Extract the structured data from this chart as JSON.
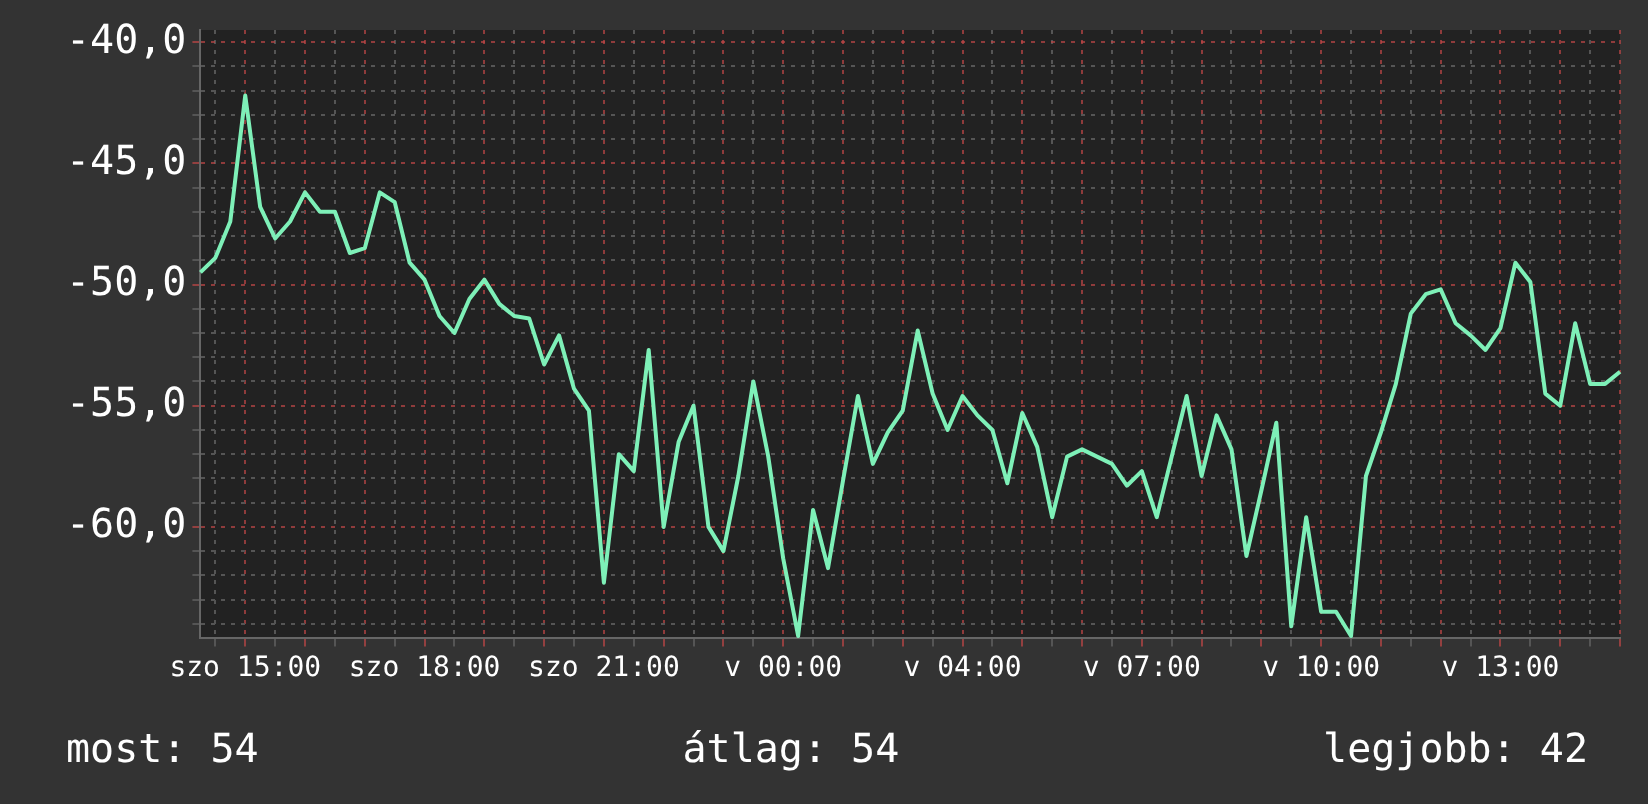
{
  "chart_data": {
    "type": "line",
    "categories": [
      null,
      null,
      null,
      "szo 15:00",
      null,
      null,
      null,
      null,
      null,
      null,
      null,
      null,
      null,
      null,
      null,
      "szo 18:00",
      null,
      null,
      null,
      null,
      null,
      null,
      null,
      null,
      null,
      null,
      null,
      "szo 21:00",
      null,
      null,
      null,
      null,
      null,
      null,
      null,
      null,
      null,
      null,
      null,
      "v 00:00",
      null,
      null,
      null,
      null,
      null,
      null,
      null,
      null,
      null,
      null,
      null,
      "v 04:00",
      null,
      null,
      null,
      null,
      null,
      null,
      null,
      null,
      null,
      null,
      null,
      "v 07:00",
      null,
      null,
      null,
      null,
      null,
      null,
      null,
      null,
      null,
      null,
      null,
      "v 10:00",
      null,
      null,
      null,
      null,
      null,
      null,
      null,
      null,
      null,
      null,
      null,
      "v 13:00",
      null,
      null,
      null,
      null,
      null,
      null,
      null,
      null
    ],
    "series": [
      {
        "color": "#7ef0b8",
        "values": [
          -49.5,
          -48.9,
          -47.4,
          -42.2,
          -46.8,
          -48.1,
          -47.4,
          -46.2,
          -47.0,
          -47.0,
          -48.7,
          -48.5,
          -46.2,
          -46.6,
          -49.1,
          -49.8,
          -51.3,
          -52.0,
          -50.6,
          -49.8,
          -50.8,
          -51.3,
          -51.4,
          -53.3,
          -52.1,
          -54.3,
          -55.2,
          -62.3,
          -57.0,
          -57.7,
          -52.7,
          -60.0,
          -56.5,
          -55.0,
          -60.0,
          -61.0,
          -57.9,
          -54.0,
          -57.1,
          -61.3,
          -64.5,
          -59.3,
          -61.7,
          -58.1,
          -54.6,
          -57.4,
          -56.1,
          -55.2,
          -51.9,
          -54.5,
          -56.0,
          -54.6,
          -55.4,
          -56.0,
          -58.2,
          -55.3,
          -56.7,
          -59.6,
          -57.1,
          -56.8,
          -57.1,
          -57.4,
          -58.3,
          -57.7,
          -59.6,
          -57.1,
          -54.6,
          -57.9,
          -55.4,
          -56.8,
          -61.2,
          -58.5,
          -55.7,
          -64.1,
          -59.6,
          -63.5,
          -63.5,
          -64.5,
          -57.9,
          -56.1,
          -54.1,
          -51.2,
          -50.4,
          -50.2,
          -51.6,
          -52.1,
          -52.7,
          -51.8,
          -49.1,
          -49.9,
          -54.5,
          -55.0,
          -51.6,
          -54.1,
          -54.1,
          -53.6
        ]
      }
    ],
    "ylim": [
      -64.6,
      -39.5
    ],
    "yticks": [
      {
        "value": -40,
        "label": "-40,0"
      },
      {
        "value": -41,
        "label": null
      },
      {
        "value": -42,
        "label": null
      },
      {
        "value": -43,
        "label": null
      },
      {
        "value": -44,
        "label": null
      },
      {
        "value": -45,
        "label": "-45,0"
      },
      {
        "value": -46,
        "label": null
      },
      {
        "value": -47,
        "label": null
      },
      {
        "value": -48,
        "label": null
      },
      {
        "value": -49,
        "label": null
      },
      {
        "value": -50,
        "label": "-50,0"
      },
      {
        "value": -51,
        "label": null
      },
      {
        "value": -52,
        "label": null
      },
      {
        "value": -53,
        "label": null
      },
      {
        "value": -54,
        "label": null
      },
      {
        "value": -55,
        "label": "-55,0"
      },
      {
        "value": -56,
        "label": null
      },
      {
        "value": -57,
        "label": null
      },
      {
        "value": -58,
        "label": null
      },
      {
        "value": -59,
        "label": null
      },
      {
        "value": -60,
        "label": "-60,0"
      },
      {
        "value": -61,
        "label": null
      },
      {
        "value": -62,
        "label": null
      },
      {
        "value": -63,
        "label": null
      },
      {
        "value": -64,
        "label": null
      }
    ],
    "grid": true,
    "legend": false,
    "marker": "none",
    "line_style": "solid",
    "annotations": [
      "most: 54",
      "átlag: 54",
      "legjobb: 42"
    ]
  }
}
